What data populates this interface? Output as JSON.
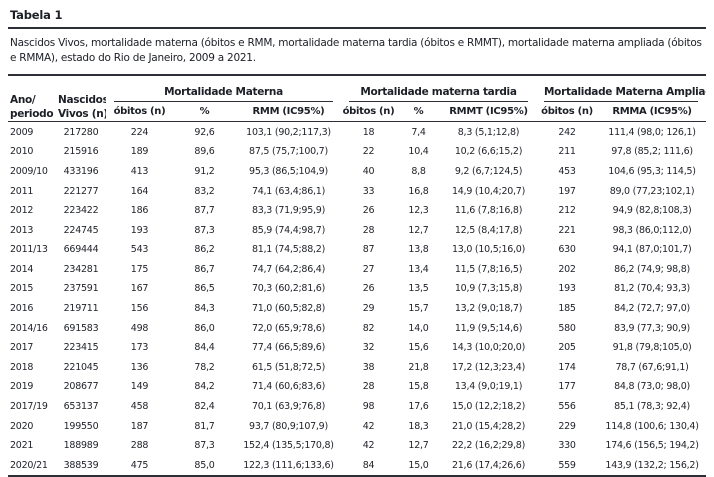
{
  "page": {
    "title": "Tabela 1",
    "caption": "Nascidos Vivos, mortalidade materna (óbitos e RMM, mortalidade materna tardia (óbitos e RMMT), mortalidade materna ampliada (óbitos e RMMA), estado do Rio de Janeiro, 2009 a 2021."
  },
  "table": {
    "header": {
      "ano_line1": "Ano/",
      "ano_line2": "periodo",
      "nascidos_line1": "Nascidos",
      "nascidos_line2": "Vivos (n)",
      "groups": [
        {
          "label": "Mortalidade Materna",
          "cols": [
            "óbitos (n)",
            "%",
            "RMM (IC95%)"
          ]
        },
        {
          "label": "Mortalidade materna tardia",
          "cols": [
            "óbitos (n)",
            "%",
            "RMMT (IC95%)"
          ]
        },
        {
          "label": "Mortalidade Materna Ampliada",
          "cols": [
            "óbitos (n)",
            "RMMA (IC95%)"
          ]
        }
      ]
    },
    "rows": [
      [
        "2009",
        "217280",
        "224",
        "92,6",
        "103,1 (90,2;117,3)",
        "18",
        "7,4",
        "8,3 (5,1;12,8)",
        "242",
        "111,4 (98,0; 126,1)"
      ],
      [
        "2010",
        "215916",
        "189",
        "89,6",
        "87,5 (75,7;100,7)",
        "22",
        "10,4",
        "10,2 (6,6;15,2)",
        "211",
        "97,8 (85,2; 111,6)"
      ],
      [
        "2009/10",
        "433196",
        "413",
        "91,2",
        "95,3 (86,5;104,9)",
        "40",
        "8,8",
        "9,2 (6,7;124,5)",
        "453",
        "104,6 (95,3; 114,5)"
      ],
      [
        "2011",
        "221277",
        "164",
        "83,2",
        "74,1 (63,4;86,1)",
        "33",
        "16,8",
        "14,9 (10,4;20,7)",
        "197",
        "89,0 (77,23;102,1)"
      ],
      [
        "2012",
        "223422",
        "186",
        "87,7",
        "83,3 (71,9;95,9)",
        "26",
        "12,3",
        "11,6 (7,8;16,8)",
        "212",
        "94,9 (82,8;108,3)"
      ],
      [
        "2013",
        "224745",
        "193",
        "87,3",
        "85,9 (74,4;98,7)",
        "28",
        "12,7",
        "12,5 (8,4;17,8)",
        "221",
        "98,3 (86,0;112,0)"
      ],
      [
        "2011/13",
        "669444",
        "543",
        "86,2",
        "81,1 (74,5;88,2)",
        "87",
        "13,8",
        "13,0 (10,5;16,0)",
        "630",
        "94,1 (87,0;101,7)"
      ],
      [
        "2014",
        "234281",
        "175",
        "86,7",
        "74,7 (64,2;86,4)",
        "27",
        "13,4",
        "11,5 (7,8;16,5)",
        "202",
        "86,2 (74,9; 98,8)"
      ],
      [
        "2015",
        "237591",
        "167",
        "86,5",
        "70,3 (60,2;81,6)",
        "26",
        "13,5",
        "10,9 (7,3;15,8)",
        "193",
        "81,2 (70,4; 93,3)"
      ],
      [
        "2016",
        "219711",
        "156",
        "84,3",
        "71,0 (60,5;82,8)",
        "29",
        "15,7",
        "13,2 (9,0;18,7)",
        "185",
        "84,2 (72,7; 97,0)"
      ],
      [
        "2014/16",
        "691583",
        "498",
        "86,0",
        "72,0 (65,9;78,6)",
        "82",
        "14,0",
        "11,9 (9,5;14,6)",
        "580",
        "83,9 (77,3; 90,9)"
      ],
      [
        "2017",
        "223415",
        "173",
        "84,4",
        "77,4 (66,5;89,6)",
        "32",
        "15,6",
        "14,3 (10,0;20,0)",
        "205",
        "91,8 (79,8;105,0)"
      ],
      [
        "2018",
        "221045",
        "136",
        "78,2",
        "61,5 (51,8;72,5)",
        "38",
        "21,8",
        "17,2 (12,3;23,4)",
        "174",
        "78,7 (67,6;91,1)"
      ],
      [
        "2019",
        "208677",
        "149",
        "84,2",
        "71,4 (60,6;83,6)",
        "28",
        "15,8",
        "13,4 (9,0;19,1)",
        "177",
        "84,8 (73,0; 98,0)"
      ],
      [
        "2017/19",
        "653137",
        "458",
        "82,4",
        "70,1 (63,9;76,8)",
        "98",
        "17,6",
        "15,0 (12,2;18,2)",
        "556",
        "85,1 (78,3; 92,4)"
      ],
      [
        "2020",
        "199550",
        "187",
        "81,7",
        "93,7 (80,9;107,9)",
        "42",
        "18,3",
        "21,0 (15,4;28,2)",
        "229",
        "114,8 (100,6; 130,4)"
      ],
      [
        "2021",
        "188989",
        "288",
        "87,3",
        "152,4 (135,5;170,8)",
        "42",
        "12,7",
        "22,2 (16,2;29,8)",
        "330",
        "174,6 (156,5; 194,2)"
      ],
      [
        "2020/21",
        "388539",
        "475",
        "85,0",
        "122,3 (111,6;133,6)",
        "84",
        "15,0",
        "21,6 (17,4;26,6)",
        "559",
        "143,9 (132,2; 156,2)"
      ]
    ]
  }
}
